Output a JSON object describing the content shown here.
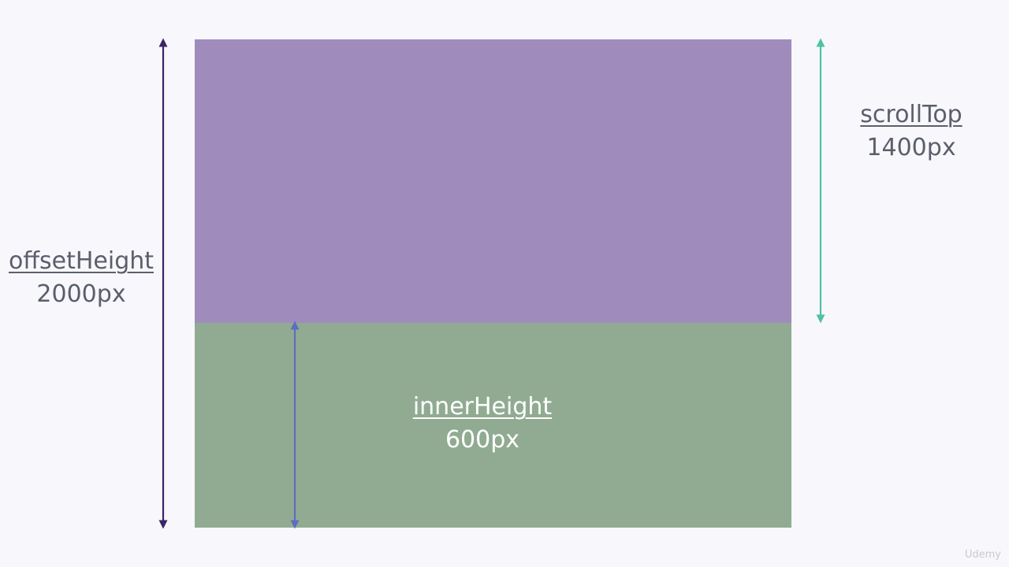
{
  "colors": {
    "scrolled_region": "#9f8cbd",
    "viewport_region": "#91ab92",
    "offset_arrow": "#3c2466",
    "scroll_arrow": "#4fc1a4",
    "inner_arrow": "#5b6ec0",
    "label_text": "#5a5f6b",
    "inner_label_text": "#ffffff"
  },
  "labels": {
    "offset": {
      "name": "offsetHeight",
      "value": "2000px"
    },
    "scroll": {
      "name": "scrollTop",
      "value": "1400px"
    },
    "inner": {
      "name": "innerHeight",
      "value": "600px"
    }
  },
  "watermark": "Udemy"
}
